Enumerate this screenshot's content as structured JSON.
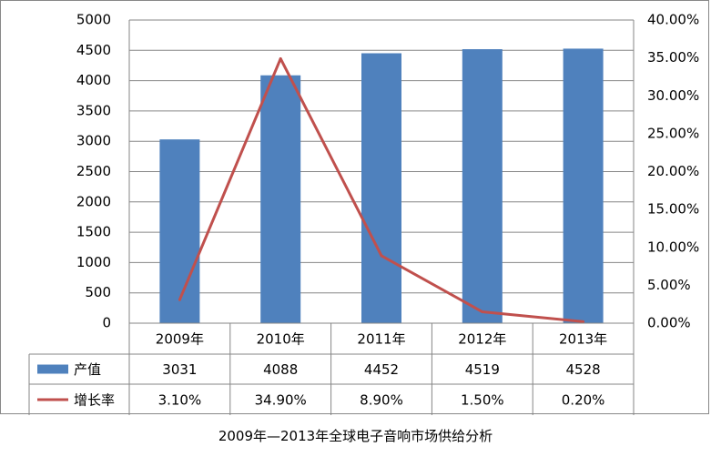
{
  "chart_data": {
    "type": "bar",
    "categories": [
      "2009年",
      "2010年",
      "2011年",
      "2012年",
      "2013年"
    ],
    "series": [
      {
        "name": "产值",
        "kind": "bar",
        "axis": "left",
        "color": "#4F81BD",
        "values": [
          3031,
          4088,
          4452,
          4519,
          4528
        ],
        "labels": [
          "3031",
          "4088",
          "4452",
          "4519",
          "4528"
        ]
      },
      {
        "name": "增长率",
        "kind": "line",
        "axis": "right",
        "color": "#C0504D",
        "values": [
          3.1,
          34.9,
          8.9,
          1.5,
          0.2
        ],
        "labels": [
          "3.10%",
          "34.90%",
          "8.90%",
          "1.50%",
          "0.20%"
        ]
      }
    ],
    "y_left": {
      "ylim": [
        0,
        5000
      ],
      "ticks": [
        "0",
        "500",
        "1000",
        "1500",
        "2000",
        "2500",
        "3000",
        "3500",
        "4000",
        "4500",
        "5000"
      ]
    },
    "y_right": {
      "ylim": [
        0,
        40
      ],
      "ticks": [
        "0.00%",
        "5.00%",
        "10.00%",
        "15.00%",
        "20.00%",
        "25.00%",
        "30.00%",
        "35.00%",
        "40.00%"
      ]
    },
    "grid": true,
    "data_table": true
  },
  "caption": "2009年—2013年全球电子音响市场供给分析"
}
